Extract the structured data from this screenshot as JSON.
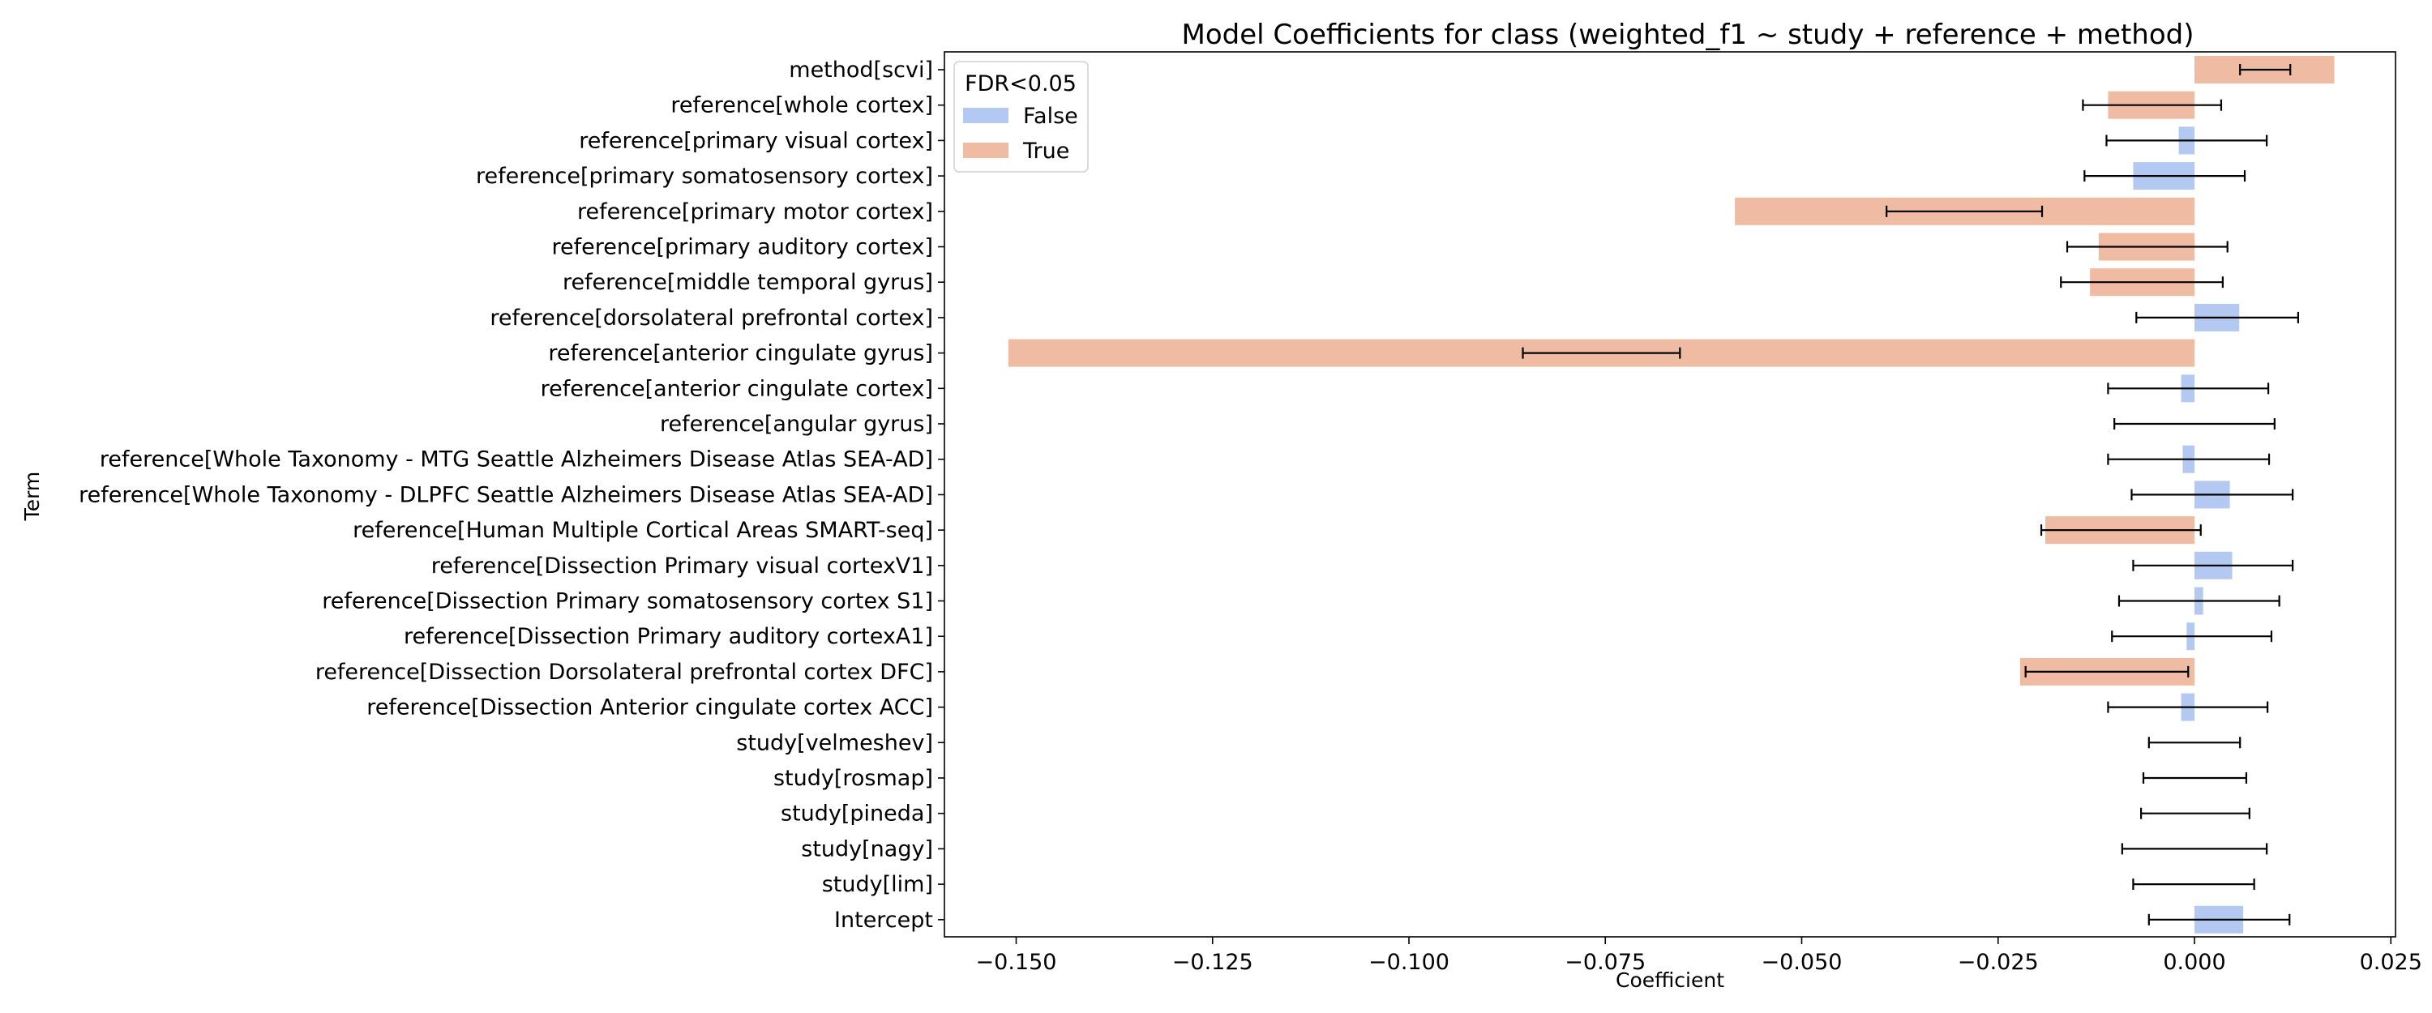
{
  "chart_data": {
    "type": "bar",
    "orientation": "horizontal",
    "title": "Model Coefficients for class (weighted_f1 ~ study + reference + method)",
    "xlabel": "Coefficient",
    "ylabel": "Term",
    "xlim": [
      -0.16,
      0.026
    ],
    "xticks": [
      -0.15,
      -0.125,
      -0.1,
      -0.075,
      -0.05,
      -0.025,
      0.0,
      0.025
    ],
    "xtick_labels": [
      "−0.150",
      "−0.125",
      "−0.100",
      "−0.075",
      "−0.050",
      "−0.025",
      "0.000",
      "0.025"
    ],
    "grid": false,
    "legend": {
      "title": "FDR<0.05",
      "placement": "top-left",
      "entries": [
        {
          "label": "False",
          "color": "#b3c9f2"
        },
        {
          "label": "True",
          "color": "#efbba2"
        }
      ]
    },
    "colors": {
      "False": "#b3c9f2",
      "True": "#efbba2"
    },
    "terms": [
      {
        "term": "method[scvi]",
        "coef": 0.0178,
        "ci": [
          0.0058,
          0.0122
        ],
        "fdr": "True"
      },
      {
        "term": "reference[whole cortex]",
        "coef": -0.011,
        "ci": [
          -0.0142,
          0.0034
        ],
        "fdr": "True"
      },
      {
        "term": "reference[primary visual cortex]",
        "coef": -0.002,
        "ci": [
          -0.0112,
          0.0092
        ],
        "fdr": "False"
      },
      {
        "term": "reference[primary somatosensory cortex]",
        "coef": -0.0078,
        "ci": [
          -0.014,
          0.0064
        ],
        "fdr": "False"
      },
      {
        "term": "reference[primary motor cortex]",
        "coef": -0.0585,
        "ci": [
          -0.0392,
          -0.0194
        ],
        "fdr": "True"
      },
      {
        "term": "reference[primary auditory cortex]",
        "coef": -0.0122,
        "ci": [
          -0.0162,
          0.0042
        ],
        "fdr": "True"
      },
      {
        "term": "reference[middle temporal gyrus]",
        "coef": -0.0133,
        "ci": [
          -0.017,
          0.0036
        ],
        "fdr": "True"
      },
      {
        "term": "reference[dorsolateral prefrontal cortex]",
        "coef": 0.0057,
        "ci": [
          -0.0074,
          0.0132
        ],
        "fdr": "False"
      },
      {
        "term": "reference[anterior cingulate gyrus]",
        "coef": -0.151,
        "ci": [
          -0.0855,
          -0.0655
        ],
        "fdr": "True"
      },
      {
        "term": "reference[anterior cingulate cortex]",
        "coef": -0.0017,
        "ci": [
          -0.011,
          0.0094
        ],
        "fdr": "False"
      },
      {
        "term": "reference[angular gyrus]",
        "coef": 0.0,
        "ci": [
          -0.0102,
          0.0102
        ],
        "fdr": "False"
      },
      {
        "term": "reference[Whole Taxonomy - MTG Seattle Alzheimers Disease Atlas SEA-AD]",
        "coef": -0.0015,
        "ci": [
          -0.011,
          0.0095
        ],
        "fdr": "False"
      },
      {
        "term": "reference[Whole Taxonomy - DLPFC Seattle Alzheimers Disease Atlas SEA-AD]",
        "coef": 0.0045,
        "ci": [
          -0.008,
          0.0125
        ],
        "fdr": "False"
      },
      {
        "term": "reference[Human Multiple Cortical Areas SMART-seq]",
        "coef": -0.019,
        "ci": [
          -0.0195,
          0.0008
        ],
        "fdr": "True"
      },
      {
        "term": "reference[Dissection Primary visual cortexV1]",
        "coef": 0.0048,
        "ci": [
          -0.0078,
          0.0125
        ],
        "fdr": "False"
      },
      {
        "term": "reference[Dissection Primary somatosensory cortex S1]",
        "coef": 0.0011,
        "ci": [
          -0.0096,
          0.0108
        ],
        "fdr": "False"
      },
      {
        "term": "reference[Dissection Primary auditory cortexA1]",
        "coef": -0.001,
        "ci": [
          -0.0105,
          0.0098
        ],
        "fdr": "False"
      },
      {
        "term": "reference[Dissection Dorsolateral prefrontal cortex DFC]",
        "coef": -0.0222,
        "ci": [
          -0.0215,
          -0.0008
        ],
        "fdr": "True"
      },
      {
        "term": "reference[Dissection Anterior cingulate cortex ACC]",
        "coef": -0.0017,
        "ci": [
          -0.011,
          0.0093
        ],
        "fdr": "False"
      },
      {
        "term": "study[velmeshev]",
        "coef": 0.0,
        "ci": [
          -0.0058,
          0.0058
        ],
        "fdr": "False"
      },
      {
        "term": "study[rosmap]",
        "coef": 0.0,
        "ci": [
          -0.0065,
          0.0066
        ],
        "fdr": "False"
      },
      {
        "term": "study[pineda]",
        "coef": 0.0,
        "ci": [
          -0.0068,
          0.007
        ],
        "fdr": "False"
      },
      {
        "term": "study[nagy]",
        "coef": 0.0,
        "ci": [
          -0.0092,
          0.0092
        ],
        "fdr": "False"
      },
      {
        "term": "study[lim]",
        "coef": 0.0,
        "ci": [
          -0.0078,
          0.0076
        ],
        "fdr": "False"
      },
      {
        "term": "Intercept",
        "coef": 0.0062,
        "ci": [
          -0.0058,
          0.0121
        ],
        "fdr": "False"
      }
    ]
  }
}
